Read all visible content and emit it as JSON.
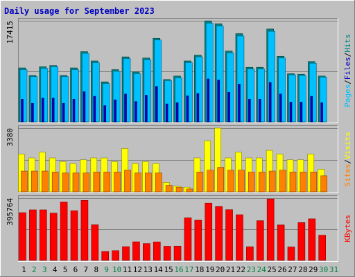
{
  "title": "Daily usage for September 2023",
  "colors": {
    "background": "#c0c0c0",
    "panel": "#c0c0c0",
    "title": "#0000c0",
    "hits": "#00c0c0",
    "hits_dark": "#008080",
    "files": "#0000c0",
    "pages": "#00c0ff",
    "visits": "#ffff00",
    "sites": "#ff8000",
    "kbytes": "#ff0000",
    "weekday_label": "#000000",
    "weekend_label": "#008040"
  },
  "chart_data": [
    {
      "type": "bar",
      "title": "Daily usage for September 2023",
      "ymax_label": "17415",
      "ymax": 17415,
      "legend": [
        {
          "label": "Pages",
          "color": "#00c0ff"
        },
        {
          "label": "Files",
          "color": "#0000c0"
        },
        {
          "label": "Hits",
          "color": "#008080"
        }
      ],
      "series": [
        {
          "name": "Hits",
          "values": [
            9300,
            8000,
            9500,
            9700,
            8000,
            9300,
            12100,
            10500,
            6900,
            9000,
            11200,
            8600,
            11000,
            14400,
            7300,
            7900,
            10500,
            11500,
            17400,
            16900,
            12200,
            15200,
            9400,
            9400,
            16000,
            11300,
            8300,
            8200,
            10400,
            7900,
            0
          ]
        },
        {
          "name": "Files",
          "values": [
            3900,
            3200,
            4100,
            4100,
            3200,
            3900,
            5200,
            4400,
            2800,
            3800,
            4800,
            3500,
            4600,
            6100,
            3100,
            3300,
            4500,
            4900,
            7400,
            7200,
            5100,
            6500,
            3900,
            3900,
            6800,
            4800,
            3400,
            3400,
            4400,
            3300,
            0
          ]
        },
        {
          "name": "Pages",
          "values": [
            9000,
            7800,
            9200,
            9500,
            7800,
            9000,
            11800,
            10200,
            6600,
            8700,
            10900,
            8300,
            10700,
            14100,
            7100,
            7600,
            10200,
            11200,
            17000,
            16500,
            11900,
            14800,
            9100,
            9100,
            15600,
            11000,
            8100,
            8000,
            10100,
            7700,
            0
          ]
        }
      ]
    },
    {
      "type": "bar",
      "ymax_label": "3380",
      "ymax": 3380,
      "legend": [
        {
          "label": "Sites",
          "color": "#ff8000"
        },
        {
          "label": "Visits",
          "color": "#ffff00"
        }
      ],
      "series": [
        {
          "name": "Visits",
          "values": [
            2000,
            1800,
            2100,
            1800,
            1600,
            1500,
            1700,
            1800,
            1800,
            1600,
            2300,
            1500,
            1600,
            1500,
            500,
            300,
            250,
            1800,
            2700,
            3380,
            1800,
            2100,
            1800,
            1800,
            2200,
            2000,
            1700,
            1700,
            2000,
            1200,
            0
          ]
        },
        {
          "name": "Sites",
          "values": [
            1100,
            1100,
            1100,
            1050,
            1000,
            1000,
            1000,
            1050,
            1050,
            1050,
            1150,
            1000,
            1000,
            1000,
            350,
            250,
            150,
            1050,
            1150,
            1300,
            1150,
            1150,
            1050,
            1050,
            1100,
            1150,
            1050,
            1050,
            1050,
            850,
            0
          ]
        }
      ]
    },
    {
      "type": "bar",
      "ymax_label": "395764",
      "ymax": 395764,
      "legend": [
        {
          "label": "KBytes",
          "color": "#ff0000"
        }
      ],
      "series": [
        {
          "name": "KBytes",
          "values": [
            303000,
            321000,
            321000,
            300000,
            370000,
            315000,
            381000,
            226000,
            56000,
            62000,
            87000,
            118000,
            107000,
            117000,
            90000,
            91000,
            270000,
            255000,
            364000,
            342000,
            322000,
            290000,
            86000,
            252000,
            390000,
            225000,
            85000,
            240000,
            264000,
            160000,
            0
          ]
        }
      ]
    }
  ],
  "days": [
    "1",
    "2",
    "3",
    "4",
    "5",
    "6",
    "7",
    "8",
    "9",
    "10",
    "11",
    "12",
    "13",
    "14",
    "15",
    "16",
    "17",
    "18",
    "19",
    "20",
    "21",
    "22",
    "23",
    "24",
    "25",
    "26",
    "27",
    "28",
    "29",
    "30",
    "31"
  ],
  "weekend_days": [
    2,
    3,
    9,
    10,
    16,
    17,
    23,
    24,
    30,
    31
  ]
}
